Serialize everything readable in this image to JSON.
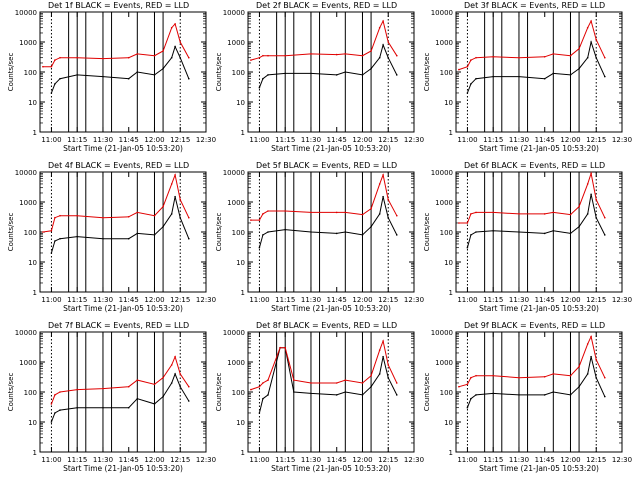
{
  "panel_title_suffix": "BLACK = Events, RED = LLD",
  "ylabel": "Counts/sec",
  "xlabel": "Start Time (21-Jan-05 10:53:20)",
  "x_tick_labels": [
    "11:00",
    "11:15",
    "11:30",
    "11:45",
    "12:00",
    "12:15",
    "12:30"
  ],
  "y_tick_labels": [
    "1",
    "10",
    "100",
    "1000",
    "10000"
  ],
  "colors": {
    "events": "#000000",
    "lld": "#e00000",
    "axis": "#000000"
  },
  "chart_data": [
    {
      "type": "line",
      "title": "Det 1f",
      "xlim": [
        "10:53:20",
        "12:30"
      ],
      "ylim": [
        1,
        10000
      ],
      "yscale": "log",
      "x": [
        "10:55",
        "11:00",
        "11:02",
        "11:05",
        "11:15",
        "11:30",
        "11:45",
        "11:50",
        "12:00",
        "12:05",
        "12:10",
        "12:12",
        "12:15",
        "12:20"
      ],
      "series": [
        {
          "name": "BLACK = Events",
          "values": [
            null,
            20,
            40,
            60,
            80,
            70,
            60,
            100,
            80,
            130,
            300,
            700,
            300,
            60
          ]
        },
        {
          "name": "RED = LLD",
          "values": [
            150,
            150,
            250,
            300,
            300,
            280,
            300,
            400,
            350,
            500,
            3000,
            4000,
            1000,
            300
          ]
        }
      ],
      "vlines_dotted": [
        "11:00",
        "12:15"
      ],
      "vlines_solid": [
        "11:10",
        "11:15",
        "11:20",
        "11:30",
        "11:35",
        "11:50",
        "12:00",
        "12:05"
      ]
    },
    {
      "type": "line",
      "title": "Det 2f",
      "xlim": [
        "10:53:20",
        "12:30"
      ],
      "ylim": [
        1,
        10000
      ],
      "yscale": "log",
      "x": [
        "10:55",
        "11:00",
        "11:02",
        "11:05",
        "11:15",
        "11:30",
        "11:45",
        "11:50",
        "12:00",
        "12:05",
        "12:10",
        "12:12",
        "12:15",
        "12:20"
      ],
      "series": [
        {
          "name": "BLACK = Events",
          "values": [
            null,
            30,
            60,
            80,
            90,
            90,
            80,
            100,
            80,
            130,
            300,
            800,
            300,
            80
          ]
        },
        {
          "name": "RED = LLD",
          "values": [
            250,
            300,
            350,
            350,
            350,
            400,
            380,
            400,
            350,
            500,
            3000,
            5000,
            1000,
            350
          ]
        }
      ],
      "vlines_dotted": [
        "11:00",
        "12:15"
      ],
      "vlines_solid": [
        "11:10",
        "11:15",
        "11:20",
        "11:30",
        "11:35",
        "11:50",
        "12:00",
        "12:05"
      ]
    },
    {
      "type": "line",
      "title": "Det 3f",
      "xlim": [
        "10:53:20",
        "12:30"
      ],
      "ylim": [
        1,
        10000
      ],
      "yscale": "log",
      "x": [
        "10:55",
        "11:00",
        "11:02",
        "11:05",
        "11:15",
        "11:30",
        "11:45",
        "11:50",
        "12:00",
        "12:05",
        "12:10",
        "12:12",
        "12:15",
        "12:20"
      ],
      "series": [
        {
          "name": "BLACK = Events",
          "values": [
            null,
            20,
            40,
            60,
            70,
            70,
            60,
            90,
            80,
            130,
            300,
            1000,
            300,
            70
          ]
        },
        {
          "name": "RED = LLD",
          "values": [
            120,
            150,
            250,
            300,
            320,
            300,
            320,
            400,
            350,
            600,
            3000,
            5000,
            1200,
            300
          ]
        }
      ],
      "vlines_dotted": [
        "11:00",
        "12:15"
      ],
      "vlines_solid": [
        "11:10",
        "11:15",
        "11:20",
        "11:30",
        "11:35",
        "11:50",
        "12:00",
        "12:05"
      ]
    },
    {
      "type": "line",
      "title": "Det 4f",
      "xlim": [
        "10:53:20",
        "12:30"
      ],
      "ylim": [
        1,
        10000
      ],
      "yscale": "log",
      "x": [
        "10:55",
        "11:00",
        "11:02",
        "11:05",
        "11:15",
        "11:30",
        "11:45",
        "11:50",
        "12:00",
        "12:05",
        "12:10",
        "12:12",
        "12:15",
        "12:20"
      ],
      "series": [
        {
          "name": "BLACK = Events",
          "values": [
            null,
            20,
            50,
            60,
            70,
            60,
            60,
            90,
            80,
            150,
            400,
            1500,
            300,
            60
          ]
        },
        {
          "name": "RED = LLD",
          "values": [
            100,
            110,
            300,
            350,
            350,
            300,
            320,
            450,
            350,
            700,
            4000,
            8000,
            1200,
            300
          ]
        }
      ],
      "vlines_dotted": [
        "11:00",
        "12:15"
      ],
      "vlines_solid": [
        "11:10",
        "11:15",
        "11:20",
        "11:30",
        "11:35",
        "11:50",
        "12:00",
        "12:05"
      ]
    },
    {
      "type": "line",
      "title": "Det 5f",
      "xlim": [
        "10:53:20",
        "12:30"
      ],
      "ylim": [
        1,
        10000
      ],
      "yscale": "log",
      "x": [
        "10:55",
        "11:00",
        "11:02",
        "11:05",
        "11:15",
        "11:30",
        "11:45",
        "11:50",
        "12:00",
        "12:05",
        "12:10",
        "12:12",
        "12:15",
        "12:20"
      ],
      "series": [
        {
          "name": "BLACK = Events",
          "values": [
            null,
            30,
            80,
            100,
            120,
            100,
            90,
            100,
            80,
            150,
            400,
            1500,
            300,
            80
          ]
        },
        {
          "name": "RED = LLD",
          "values": [
            250,
            250,
            400,
            500,
            500,
            450,
            450,
            450,
            380,
            600,
            4000,
            8000,
            1200,
            350
          ]
        }
      ],
      "vlines_dotted": [
        "11:00",
        "12:15"
      ],
      "vlines_solid": [
        "11:10",
        "11:15",
        "11:20",
        "11:30",
        "11:35",
        "11:50",
        "12:00",
        "12:05"
      ]
    },
    {
      "type": "line",
      "title": "Det 6f",
      "xlim": [
        "10:53:20",
        "12:30"
      ],
      "ylim": [
        1,
        10000
      ],
      "yscale": "log",
      "x": [
        "10:55",
        "11:00",
        "11:02",
        "11:05",
        "11:15",
        "11:30",
        "11:45",
        "11:50",
        "12:00",
        "12:05",
        "12:10",
        "12:12",
        "12:15",
        "12:20"
      ],
      "series": [
        {
          "name": "BLACK = Events",
          "values": [
            null,
            30,
            80,
            100,
            110,
            100,
            90,
            110,
            90,
            150,
            400,
            1800,
            300,
            80
          ]
        },
        {
          "name": "RED = LLD",
          "values": [
            200,
            200,
            400,
            450,
            450,
            400,
            400,
            450,
            380,
            700,
            4000,
            9000,
            1200,
            300
          ]
        }
      ],
      "vlines_dotted": [
        "11:00",
        "12:15"
      ],
      "vlines_solid": [
        "11:10",
        "11:15",
        "11:20",
        "11:30",
        "11:35",
        "11:50",
        "12:00",
        "12:05"
      ]
    },
    {
      "type": "line",
      "title": "Det 7f",
      "xlim": [
        "10:53:20",
        "12:30"
      ],
      "ylim": [
        1,
        10000
      ],
      "yscale": "log",
      "x": [
        "10:55",
        "11:00",
        "11:02",
        "11:05",
        "11:15",
        "11:30",
        "11:45",
        "11:50",
        "12:00",
        "12:05",
        "12:10",
        "12:12",
        "12:15",
        "12:20"
      ],
      "series": [
        {
          "name": "BLACK = Events",
          "values": [
            null,
            10,
            20,
            25,
            30,
            30,
            30,
            60,
            40,
            70,
            200,
            400,
            150,
            50
          ]
        },
        {
          "name": "RED = LLD",
          "values": [
            null,
            40,
            80,
            100,
            120,
            130,
            150,
            250,
            180,
            300,
            800,
            1500,
            400,
            150
          ]
        }
      ],
      "vlines_dotted": [
        "11:00",
        "12:15"
      ],
      "vlines_solid": [
        "11:10",
        "11:15",
        "11:20",
        "11:30",
        "11:35",
        "11:50",
        "12:00",
        "12:05"
      ]
    },
    {
      "type": "line",
      "title": "Det 8f",
      "xlim": [
        "10:53:20",
        "12:30"
      ],
      "ylim": [
        1,
        10000
      ],
      "yscale": "log",
      "x": [
        "10:55",
        "11:00",
        "11:02",
        "11:05",
        "11:12",
        "11:15",
        "11:20",
        "11:30",
        "11:45",
        "11:50",
        "12:00",
        "12:05",
        "12:10",
        "12:12",
        "12:15",
        "12:20"
      ],
      "series": [
        {
          "name": "BLACK = Events",
          "values": [
            null,
            20,
            60,
            80,
            3000,
            3000,
            100,
            90,
            80,
            100,
            80,
            150,
            400,
            1500,
            300,
            80
          ]
        },
        {
          "name": "RED = LLD",
          "values": [
            120,
            150,
            200,
            250,
            3000,
            3000,
            250,
            200,
            200,
            250,
            200,
            350,
            2500,
            5000,
            800,
            200
          ]
        }
      ],
      "vlines_dotted": [
        "11:00",
        "12:15"
      ],
      "vlines_solid": [
        "11:10",
        "11:15",
        "11:20",
        "11:30",
        "11:35",
        "11:50",
        "12:00",
        "12:05"
      ]
    },
    {
      "type": "line",
      "title": "Det 9f",
      "xlim": [
        "10:53:20",
        "12:30"
      ],
      "ylim": [
        1,
        10000
      ],
      "yscale": "log",
      "x": [
        "10:55",
        "11:00",
        "11:02",
        "11:05",
        "11:15",
        "11:30",
        "11:45",
        "11:50",
        "12:00",
        "12:05",
        "12:10",
        "12:12",
        "12:15",
        "12:20"
      ],
      "series": [
        {
          "name": "BLACK = Events",
          "values": [
            null,
            30,
            60,
            80,
            90,
            80,
            80,
            100,
            80,
            150,
            400,
            1500,
            300,
            70
          ]
        },
        {
          "name": "RED = LLD",
          "values": [
            150,
            180,
            300,
            350,
            350,
            300,
            320,
            400,
            350,
            700,
            4000,
            7000,
            1200,
            300
          ]
        }
      ],
      "vlines_dotted": [
        "11:00",
        "12:15"
      ],
      "vlines_solid": [
        "11:10",
        "11:15",
        "11:20",
        "11:30",
        "11:35",
        "11:50",
        "12:00",
        "12:05"
      ]
    }
  ]
}
